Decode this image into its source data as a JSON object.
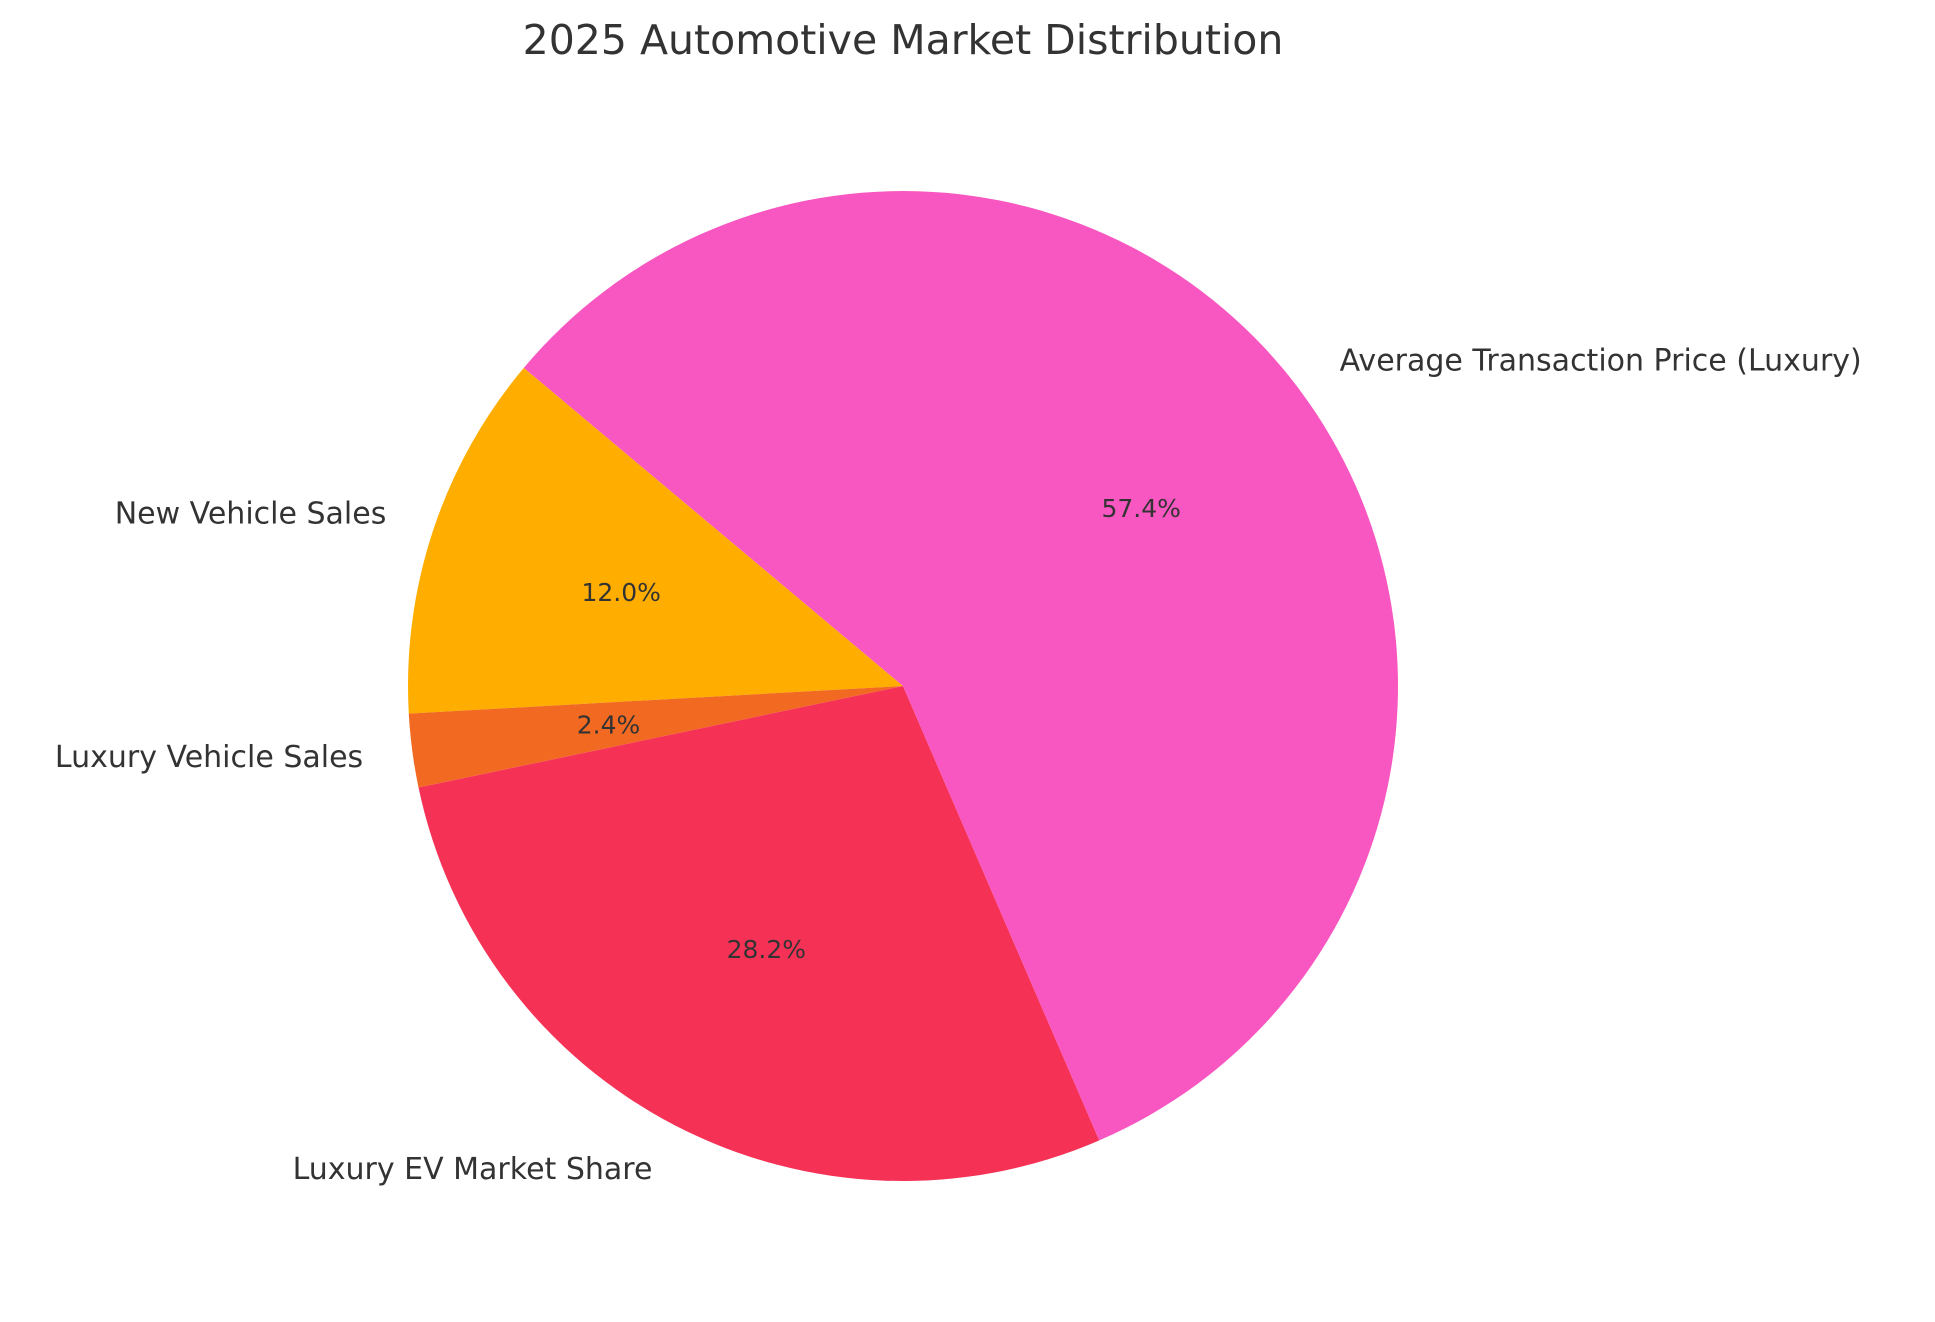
{
  "chart_data": {
    "type": "pie",
    "title": "2025 Automotive Market Distribution",
    "start_angle_deg": 140,
    "direction": "counterclockwise",
    "slices": [
      {
        "label": "New Vehicle Sales",
        "value": 12.0,
        "pct_label": "12.0%",
        "color": "#FFAE00"
      },
      {
        "label": "Luxury Vehicle Sales",
        "value": 2.4,
        "pct_label": "2.4%",
        "color": "#F26A22"
      },
      {
        "label": "Luxury EV Market Share",
        "value": 28.2,
        "pct_label": "28.2%",
        "color": "#F53256"
      },
      {
        "label": "Average Transaction Price (Luxury)",
        "value": 57.4,
        "pct_label": "57.4%",
        "color": "#F857C1"
      }
    ],
    "legend": "none",
    "grid": false
  }
}
